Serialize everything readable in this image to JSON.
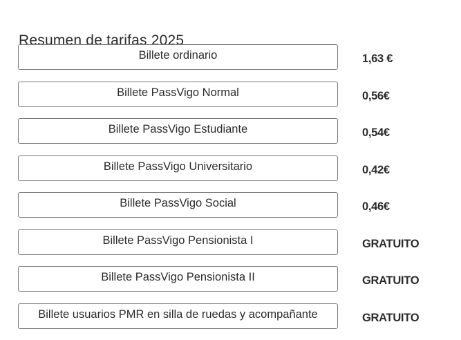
{
  "section": {
    "title": "Resumen de tarifas 2025"
  },
  "fares": [
    {
      "label": "Billete ordinario",
      "price": "1,63 €"
    },
    {
      "label": "Billete PassVigo Normal",
      "price": "0,56€"
    },
    {
      "label": "Billete PassVigo Estudiante",
      "price": "0,54€"
    },
    {
      "label": "Billete PassVigo Universitario",
      "price": "0,42€"
    },
    {
      "label": "Billete PassVigo Social",
      "price": "0,46€"
    },
    {
      "label": "Billete PassVigo Pensionista I",
      "price": "GRATUITO"
    },
    {
      "label": "Billete PassVigo Pensionista II",
      "price": "GRATUITO"
    },
    {
      "label": "Billete usuarios PMR en silla de ruedas y acompañante",
      "price": "GRATUITO"
    }
  ]
}
